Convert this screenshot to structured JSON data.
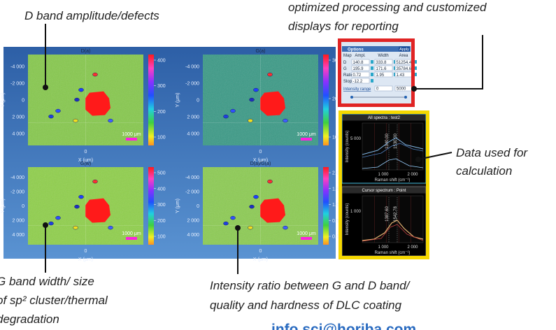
{
  "annotations": {
    "d_band": "D band amplitude/defects",
    "processing": [
      "optimized processing and customized",
      "displays for reporting"
    ],
    "data_used": [
      "Data used for",
      "calculation"
    ],
    "g_band": [
      "G band width/ size",
      "of sp² cluster/thermal",
      "degradation"
    ],
    "ratio": [
      "Intensity ratio between G and D band/",
      "quality and hardness of DLC coating"
    ]
  },
  "contact": "info.sci@horiba.com",
  "maps": [
    {
      "title": "D(a)",
      "yticks": [
        "-4 000",
        "-2 000",
        "0",
        "2 000",
        "4 000"
      ],
      "colorbar": [
        "400",
        "300",
        "200",
        "100"
      ],
      "x_tick": "0",
      "x_label": "X (μm)",
      "y_label": "Y (μm)",
      "scale": "1000 μm"
    },
    {
      "title": "G(a)",
      "yticks": [
        "-4 000",
        "-2 000",
        "0",
        "2 000",
        "4 000"
      ],
      "colorbar": [
        "300",
        "200",
        "100"
      ],
      "x_tick": "0",
      "x_label": "X (μm)",
      "y_label": "Y (μm)",
      "scale": "1000 μm"
    },
    {
      "title": "G(w)",
      "yticks": [
        "-4 000",
        "-2 000",
        "0",
        "2 000",
        "4 000"
      ],
      "colorbar": [
        "500",
        "400",
        "300",
        "200",
        "100"
      ],
      "x_tick": "0",
      "x_label": "X (μm)",
      "y_label": "Y (μm)",
      "scale": "1000 μm"
    },
    {
      "title": "D(a)/G(a)",
      "yticks": [
        "-4 000",
        "-2 000",
        "0",
        "2 000",
        "4 000"
      ],
      "colorbar": [
        "2.0",
        "1.5",
        "1.0",
        "0.5",
        "0.0"
      ],
      "x_tick": "0",
      "x_label": "X (μm)",
      "y_label": "Y (μm)",
      "scale": "1000 μm"
    }
  ],
  "options": {
    "title": "Options",
    "apply": "Apply",
    "headers": [
      "Map",
      "Ampl.",
      "Width",
      "Area"
    ],
    "rows": [
      [
        "D",
        "140.8",
        "333.8",
        "51254.4"
      ],
      [
        "G",
        "195.9",
        "171.6",
        "35784.6"
      ],
      [
        "Ratio",
        "0.72",
        "1.95",
        "1.43"
      ],
      [
        "Slope",
        "-12.2"
      ]
    ],
    "intensity_range": "Intensity range",
    "range": [
      "0",
      "5000"
    ]
  },
  "spectra": [
    {
      "title": "All spectra : test2",
      "y_label": "Intensity (counts)",
      "yticks": [
        "5 000"
      ],
      "peaks": [
        "1340.00",
        "1530.00"
      ],
      "xticks": [
        "1 000",
        "2 000"
      ],
      "x_label": "Raman shift (cm⁻¹)"
    },
    {
      "title": "Cursor spectrum : Point",
      "y_label": "Intensity (counts)",
      "yticks": [
        "1 000"
      ],
      "peaks": [
        "1387.60",
        "1542.78"
      ],
      "xticks": [
        "1 000",
        "2 000"
      ],
      "x_label": "Raman shift (cm⁻¹)"
    }
  ]
}
